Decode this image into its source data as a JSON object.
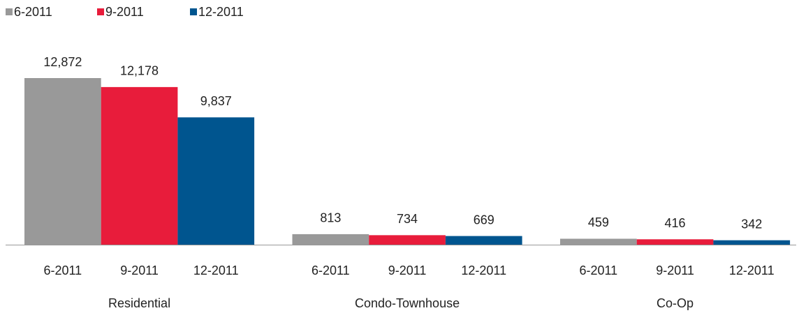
{
  "chart_data": {
    "type": "bar",
    "categories": [
      "Residential",
      "Condo-Townhouse",
      "Co-Op"
    ],
    "series": [
      {
        "name": "6-2011",
        "color": "#999999",
        "values": [
          12872,
          813,
          459
        ],
        "value_labels": [
          "12,872",
          "813",
          "459"
        ]
      },
      {
        "name": "9-2011",
        "color": "#e81c3b",
        "values": [
          12178,
          734,
          416
        ],
        "value_labels": [
          "12,178",
          "734",
          "416"
        ]
      },
      {
        "name": "12-2011",
        "color": "#00558f",
        "values": [
          9837,
          669,
          342
        ],
        "value_labels": [
          "9,837",
          "669",
          "342"
        ]
      }
    ],
    "legend": "top-left"
  }
}
